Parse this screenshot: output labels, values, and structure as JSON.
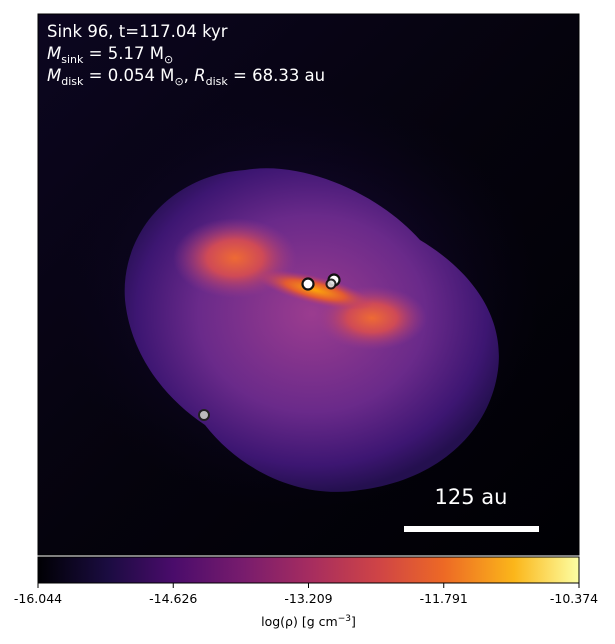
{
  "panel": {
    "title_line": "Sink 96, t=117.04 kyr",
    "msink": {
      "prefix": "M",
      "sub": "sink",
      "value": " = 5.17 M",
      "sun": "⊙"
    },
    "disk": {
      "m_prefix": "M",
      "m_sub": "disk",
      "m_value": " = 0.054 M",
      "m_sun": "⊙",
      "sep": ", ",
      "r_prefix": "R",
      "r_sub": "disk",
      "r_value": " = 68.33 au"
    },
    "scalebar_label": "125 au"
  },
  "colorbar": {
    "ticks": [
      "-16.044",
      "-14.626",
      "-13.209",
      "-11.791",
      "-10.374"
    ],
    "label_prefix": "log(ρ) [g cm",
    "label_exp": "−3",
    "label_suffix": "]"
  },
  "sinks": [
    {
      "name": "sink-left-inner",
      "fill": "#ffffff"
    },
    {
      "name": "sink-right-a",
      "fill": "#ffffff"
    },
    {
      "name": "sink-right-b",
      "fill": "#dddddd"
    },
    {
      "name": "sink-lower-left",
      "fill": "#bbbbbb"
    }
  ]
}
